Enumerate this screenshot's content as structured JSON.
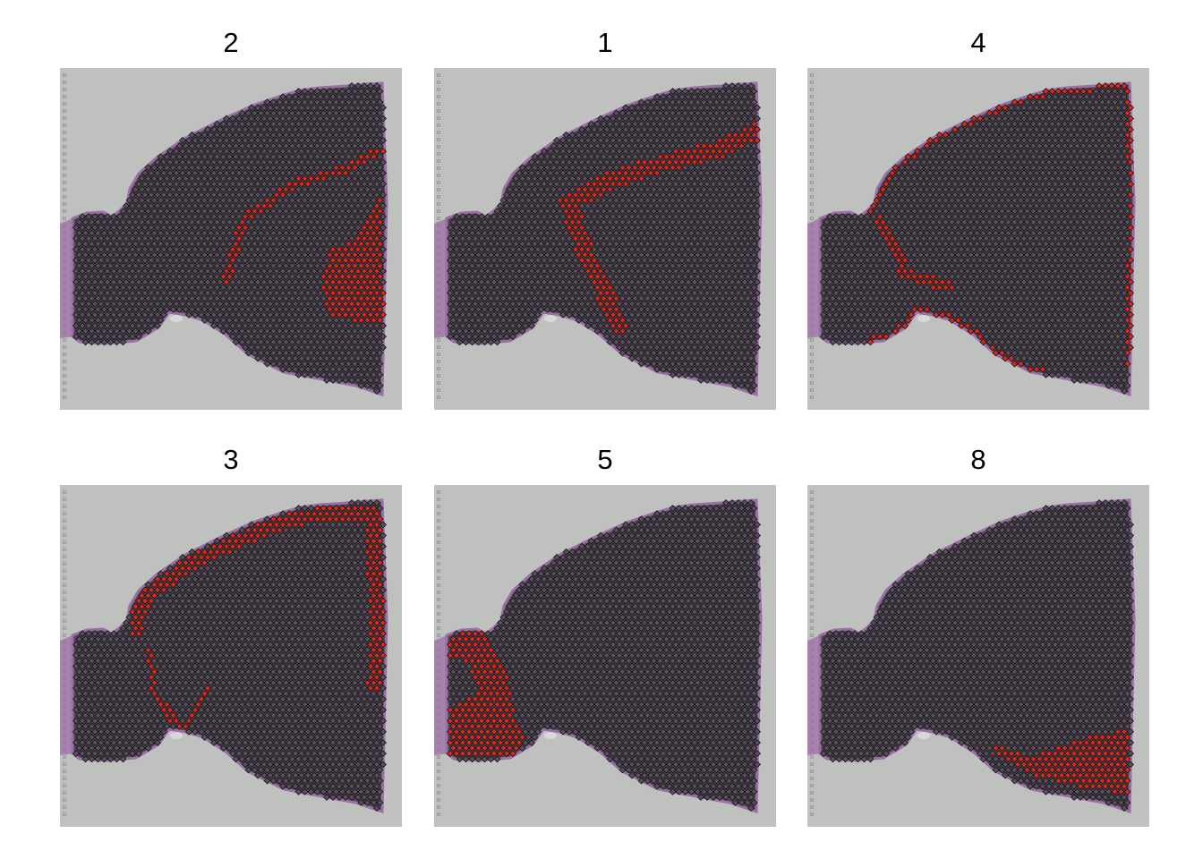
{
  "figure": {
    "panels": [
      {
        "title": "2",
        "highlight": "band_mid_arc_right"
      },
      {
        "title": "1",
        "highlight": "diagonal_band"
      },
      {
        "title": "4",
        "highlight": "outer_edge"
      },
      {
        "title": "3",
        "highlight": "cortex_band"
      },
      {
        "title": "5",
        "highlight": "left_lobe"
      },
      {
        "title": "8",
        "highlight": "bottom_right"
      }
    ],
    "colors": {
      "background": "#bfc1bf",
      "tissue": "#4e4650",
      "tissue_edge": "#9c6ea6",
      "spot_outline": "#111111",
      "spot_fill": "#5a5060",
      "highlight": "#e0281c"
    }
  }
}
